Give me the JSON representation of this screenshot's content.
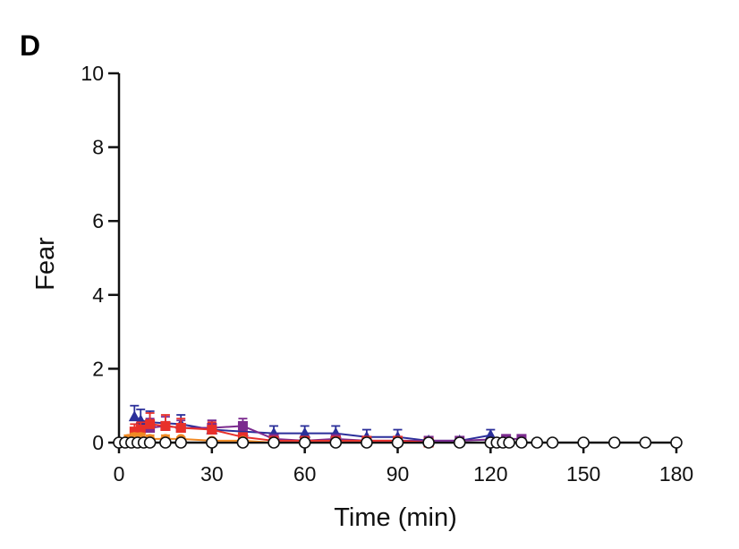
{
  "panel_label": "D",
  "chart_data": {
    "type": "line",
    "title": "",
    "xlabel": "Time (min)",
    "ylabel": "Fear",
    "xlim": [
      0,
      180
    ],
    "ylim": [
      0,
      10
    ],
    "xticks": [
      0,
      30,
      60,
      90,
      120,
      150,
      180
    ],
    "yticks": [
      0,
      2,
      4,
      6,
      8,
      10
    ],
    "grid": false,
    "series": [
      {
        "color": "#2b2f9a",
        "marker": "triangle",
        "x": [
          5,
          7,
          10,
          20,
          30,
          40,
          50,
          60,
          70,
          80,
          90,
          100,
          110,
          120
        ],
        "y": [
          0.7,
          0.6,
          0.55,
          0.5,
          0.35,
          0.3,
          0.25,
          0.25,
          0.25,
          0.15,
          0.15,
          0.05,
          0.05,
          0.2
        ],
        "err": [
          0.3,
          0.3,
          0.3,
          0.25,
          0.25,
          0.2,
          0.2,
          0.2,
          0.2,
          0.2,
          0.2,
          0.05,
          0.05,
          0.15
        ]
      },
      {
        "color": "#7b2a8e",
        "marker": "square",
        "x": [
          10,
          15,
          20,
          30,
          40,
          50,
          60,
          70,
          80,
          90,
          100,
          110,
          125,
          130
        ],
        "y": [
          0.4,
          0.45,
          0.4,
          0.4,
          0.45,
          0.1,
          0.05,
          0.1,
          0.05,
          0.05,
          0.05,
          0.05,
          0.1,
          0.1
        ],
        "err": [
          0.25,
          0.25,
          0.2,
          0.2,
          0.2,
          0.1,
          0.1,
          0.1,
          0.05,
          0.05,
          0.05,
          0.05,
          0.05,
          0.05
        ]
      },
      {
        "color": "#e8302a",
        "marker": "square",
        "x": [
          5,
          7,
          10,
          15,
          20,
          30,
          40,
          50,
          60,
          70,
          80,
          90,
          100
        ],
        "y": [
          0.3,
          0.35,
          0.5,
          0.45,
          0.4,
          0.35,
          0.15,
          0.05,
          0.05,
          0.05,
          0.05,
          0.05,
          0.0
        ],
        "err": [
          0.2,
          0.2,
          0.3,
          0.3,
          0.25,
          0.2,
          0.1,
          0.05,
          0.05,
          0.05,
          0.05,
          0.05,
          0.0
        ]
      },
      {
        "color": "#f08a24",
        "marker": "circle",
        "x": [
          3,
          5,
          7,
          10,
          15,
          20,
          30,
          40,
          50
        ],
        "y": [
          0.1,
          0.15,
          0.15,
          0.1,
          0.1,
          0.1,
          0.05,
          0.05,
          0.0
        ],
        "err": [
          0.1,
          0.1,
          0.1,
          0.1,
          0.1,
          0.05,
          0.05,
          0.05,
          0.0
        ]
      },
      {
        "color": "#111111",
        "marker": "open-circle",
        "x": [
          0,
          2,
          4,
          6,
          8,
          10,
          15,
          20,
          30,
          40,
          50,
          60,
          70,
          80,
          90,
          100,
          110,
          120,
          122,
          124,
          126,
          130,
          135,
          140,
          150,
          160,
          170,
          180
        ],
        "y": [
          0,
          0,
          0,
          0,
          0,
          0,
          0,
          0,
          0,
          0,
          0,
          0,
          0,
          0,
          0,
          0,
          0,
          0,
          0,
          0,
          0,
          0,
          0,
          0,
          0,
          0,
          0,
          0
        ],
        "err": []
      }
    ]
  }
}
